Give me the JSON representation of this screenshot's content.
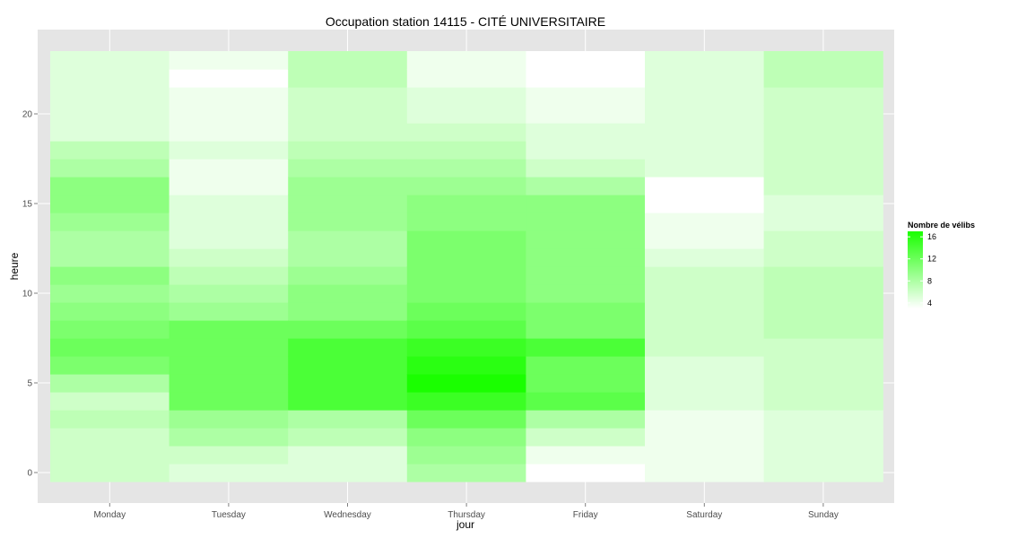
{
  "chart_data": {
    "type": "heatmap",
    "title": "Occupation station 14115 - CITÉ UNIVERSITAIRE",
    "xlabel": "jour",
    "ylabel": "heure",
    "x_categories": [
      "Monday",
      "Tuesday",
      "Wednesday",
      "Thursday",
      "Friday",
      "Saturday",
      "Sunday"
    ],
    "y_range": [
      0,
      23
    ],
    "y_ticks": [
      0,
      5,
      10,
      15,
      20
    ],
    "grid": true,
    "legend": {
      "title": "Nombre de vélibs",
      "position": "right",
      "ticks": [
        4,
        8,
        12,
        16
      ],
      "color_low": "#ffffff",
      "color_high": "#1aff00",
      "value_min": 3,
      "value_max": 17
    },
    "values": [
      [
        6,
        6,
        6,
        7,
        6,
        8,
        11,
        12,
        11,
        10,
        9,
        10,
        8,
        8,
        9,
        10,
        10,
        8,
        7,
        5,
        5,
        5,
        5,
        5
      ],
      [
        5,
        6,
        8,
        9,
        12,
        12,
        12,
        12,
        12,
        9,
        8,
        7,
        6,
        5,
        5,
        5,
        4,
        4,
        5,
        4,
        4,
        4,
        3,
        4
      ],
      [
        5,
        5,
        7,
        8,
        14,
        14,
        14,
        14,
        12,
        10,
        10,
        9,
        8,
        8,
        9,
        9,
        9,
        8,
        7,
        6,
        6,
        6,
        7,
        7
      ],
      [
        8,
        9,
        10,
        12,
        15,
        17,
        16,
        15,
        13,
        12,
        11,
        11,
        11,
        11,
        10,
        10,
        9,
        8,
        7,
        6,
        5,
        5,
        4,
        4
      ],
      [
        3,
        4,
        6,
        8,
        13,
        12,
        12,
        14,
        11,
        11,
        10,
        10,
        10,
        10,
        10,
        10,
        8,
        6,
        5,
        5,
        4,
        4,
        3,
        3
      ],
      [
        4,
        4,
        4,
        4,
        5,
        5,
        5,
        6,
        6,
        6,
        6,
        6,
        5,
        4,
        4,
        3,
        3,
        5,
        5,
        5,
        5,
        5,
        5,
        5
      ],
      [
        5,
        5,
        5,
        5,
        6,
        6,
        6,
        6,
        7,
        7,
        7,
        7,
        6,
        6,
        5,
        5,
        6,
        6,
        6,
        6,
        6,
        6,
        7,
        7
      ]
    ]
  }
}
